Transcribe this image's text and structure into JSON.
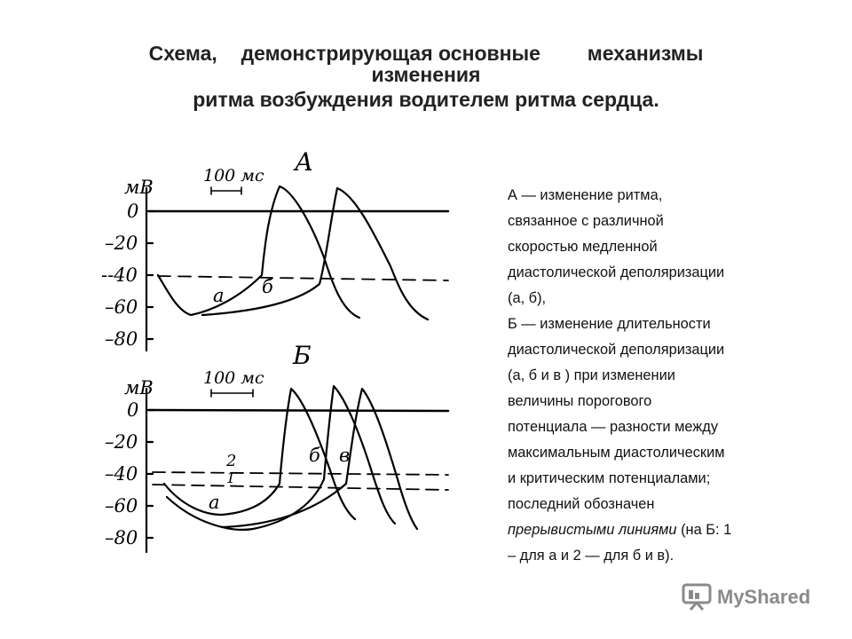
{
  "title": {
    "line1_a": "Схема,",
    "line1_b": "демонстрирующая основные",
    "line1_c": "механизмы",
    "line2": "изменения",
    "line3": "ритма возбуждения водителем ритма сердца."
  },
  "description": {
    "lines": [
      "А — изменение ритма,",
      "связанное с различной",
      "скоростью медленной",
      "диастолической деполяризации",
      "(а, б),",
      "Б — изменение длительности",
      "диастолической деполяризации",
      "(а, б и в ) при изменении",
      "величины порогового",
      "потенциала — разности между",
      "максимальным диастолическим",
      "и критическим потенциалами;",
      "последний обозначен"
    ],
    "last_italic": "прерывистыми линиями",
    "last_rest": " (на Б: 1",
    "final_line": "– для а и 2 — для б и в)."
  },
  "figure": {
    "panelA": {
      "label": "А",
      "unit": "мВ",
      "scale": "100 мс",
      "ticks": [
        "0",
        "–20",
        "--40",
        "–60",
        "–80"
      ],
      "curve_labels": [
        "а",
        "б"
      ]
    },
    "panelB": {
      "label": "Б",
      "unit": "мВ",
      "scale": "100 мс",
      "ticks": [
        "0",
        "–20",
        "–40",
        "–60",
        "–80"
      ],
      "curve_labels": [
        "а",
        "б",
        "в"
      ],
      "threshold_labels": [
        "2",
        "1"
      ]
    }
  },
  "watermark": {
    "text": "MyShared"
  }
}
